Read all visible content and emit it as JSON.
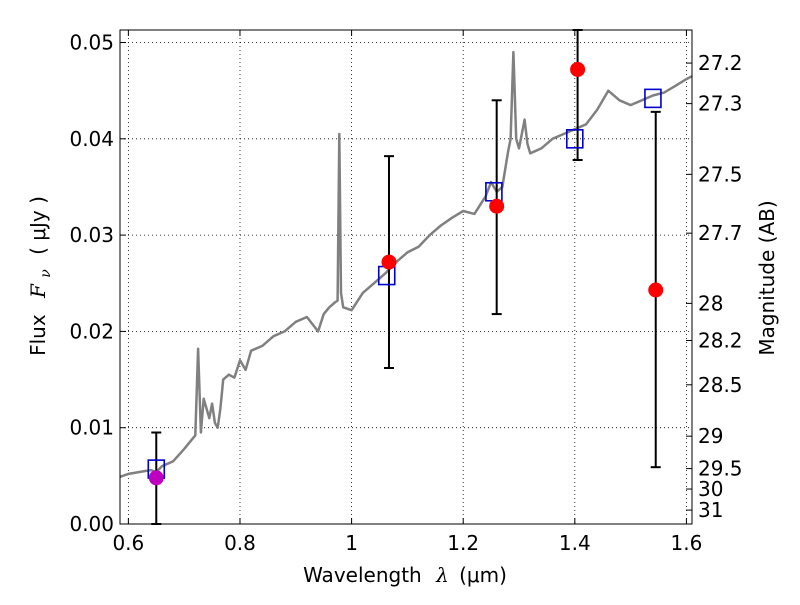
{
  "chart_data": {
    "type": "scatter",
    "xlabel_text": "Wavelength",
    "xlabel_symbol": "λ",
    "xlabel_units": "(μm)",
    "ylabel_text": "Flux",
    "ylabel_symbol": "F",
    "ylabel_subscript": "ν",
    "ylabel_units": "( μJy )",
    "y2label": "Magnitude (AB)",
    "xlim": [
      0.585,
      1.61
    ],
    "ylim": [
      0.0,
      0.0513
    ],
    "xticks": [
      {
        "value": 0.6,
        "label": "0.6"
      },
      {
        "value": 0.8,
        "label": "0.8"
      },
      {
        "value": 1.0,
        "label": "1"
      },
      {
        "value": 1.2,
        "label": "1.2"
      },
      {
        "value": 1.4,
        "label": "1.4"
      },
      {
        "value": 1.6,
        "label": "1.6"
      }
    ],
    "yticks": [
      {
        "value": 0.0,
        "label": "0.00"
      },
      {
        "value": 0.01,
        "label": "0.01"
      },
      {
        "value": 0.02,
        "label": "0.02"
      },
      {
        "value": 0.03,
        "label": "0.03"
      },
      {
        "value": 0.04,
        "label": "0.04"
      },
      {
        "value": 0.05,
        "label": "0.05"
      }
    ],
    "y2ticks": [
      {
        "value": 27.2,
        "label": "27.2"
      },
      {
        "value": 27.3,
        "label": "27.3"
      },
      {
        "value": 27.5,
        "label": "27.5"
      },
      {
        "value": 27.7,
        "label": "27.7"
      },
      {
        "value": 28.0,
        "label": "28"
      },
      {
        "value": 28.2,
        "label": "28.2"
      },
      {
        "value": 28.5,
        "label": "28.5"
      },
      {
        "value": 29.0,
        "label": "29"
      },
      {
        "value": 29.5,
        "label": "29.5"
      },
      {
        "value": 30.0,
        "label": "30"
      },
      {
        "value": 31.0,
        "label": "31"
      }
    ],
    "grid": true,
    "colors": {
      "model": "#808080",
      "observed": "#ff0000",
      "observed_first": "#bf00bf",
      "synthetic": "#0000cc",
      "errorbar": "#000000"
    },
    "model_spectrum": {
      "x": [
        0.585,
        0.6,
        0.62,
        0.64,
        0.65,
        0.66,
        0.68,
        0.7,
        0.71,
        0.72,
        0.725,
        0.73,
        0.735,
        0.745,
        0.75,
        0.755,
        0.76,
        0.765,
        0.77,
        0.78,
        0.79,
        0.8,
        0.81,
        0.82,
        0.84,
        0.86,
        0.88,
        0.9,
        0.92,
        0.94,
        0.95,
        0.96,
        0.97,
        0.975,
        0.978,
        0.981,
        0.985,
        1.0,
        1.02,
        1.04,
        1.06,
        1.08,
        1.1,
        1.12,
        1.14,
        1.16,
        1.18,
        1.2,
        1.22,
        1.24,
        1.25,
        1.26,
        1.27,
        1.28,
        1.285,
        1.29,
        1.295,
        1.3,
        1.31,
        1.315,
        1.32,
        1.34,
        1.36,
        1.38,
        1.4,
        1.42,
        1.44,
        1.46,
        1.48,
        1.5,
        1.52,
        1.54,
        1.56,
        1.58,
        1.6,
        1.61
      ],
      "y": [
        0.0049,
        0.0052,
        0.0054,
        0.0056,
        0.0054,
        0.006,
        0.0065,
        0.0078,
        0.0085,
        0.0092,
        0.0182,
        0.0095,
        0.013,
        0.011,
        0.0125,
        0.0105,
        0.01,
        0.012,
        0.015,
        0.0155,
        0.0152,
        0.017,
        0.016,
        0.018,
        0.0185,
        0.0195,
        0.02,
        0.021,
        0.0215,
        0.02,
        0.0218,
        0.0225,
        0.023,
        0.0232,
        0.0405,
        0.024,
        0.0225,
        0.0222,
        0.024,
        0.025,
        0.026,
        0.0272,
        0.0282,
        0.0288,
        0.03,
        0.031,
        0.0318,
        0.0325,
        0.0322,
        0.034,
        0.0355,
        0.0345,
        0.035,
        0.0385,
        0.04,
        0.049,
        0.04,
        0.039,
        0.042,
        0.0395,
        0.0385,
        0.039,
        0.04,
        0.0405,
        0.041,
        0.0415,
        0.043,
        0.045,
        0.044,
        0.0435,
        0.044,
        0.0445,
        0.0448,
        0.0455,
        0.0462,
        0.0465
      ]
    },
    "observed": [
      {
        "x": 0.65,
        "y": 0.0048,
        "yerr_low": 0.0,
        "yerr_high": 0.0095
      },
      {
        "x": 1.067,
        "y": 0.0272,
        "yerr_low": 0.0162,
        "yerr_high": 0.0382
      },
      {
        "x": 1.26,
        "y": 0.033,
        "yerr_low": 0.0218,
        "yerr_high": 0.044
      },
      {
        "x": 1.405,
        "y": 0.0472,
        "yerr_low": 0.0378,
        "yerr_high": 0.0513
      },
      {
        "x": 1.545,
        "y": 0.0243,
        "yerr_low": 0.0059,
        "yerr_high": 0.0428
      }
    ],
    "synthetic": [
      {
        "x": 0.65,
        "y": 0.0057
      },
      {
        "x": 1.063,
        "y": 0.0258
      },
      {
        "x": 1.255,
        "y": 0.0345
      },
      {
        "x": 1.4,
        "y": 0.04
      },
      {
        "x": 1.54,
        "y": 0.0442
      }
    ]
  }
}
